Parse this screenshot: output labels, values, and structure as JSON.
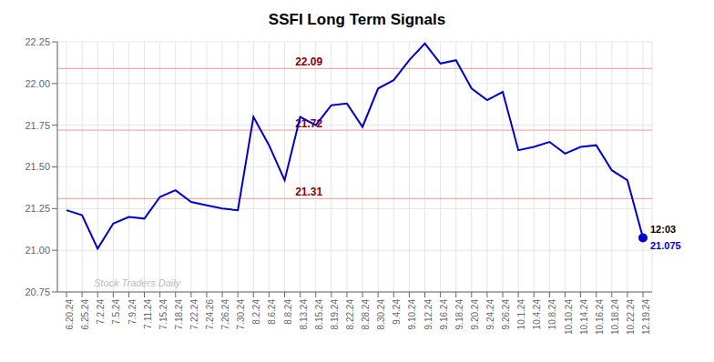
{
  "chart_data": {
    "type": "line",
    "title": "SSFI Long Term Signals",
    "categories": [
      "6.20.24",
      "6.25.24",
      "7.2.24",
      "7.5.24",
      "7.9.24",
      "7.11.24",
      "7.15.24",
      "7.18.24",
      "7.22.24",
      "7.24.26",
      "7.26.24",
      "7.30.24",
      "8.2.24",
      "8.6.24",
      "8.8.24",
      "8.13.24",
      "8.15.24",
      "8.19.24",
      "8.22.24",
      "8.28.24",
      "8.30.24",
      "9.4.24",
      "9.10.24",
      "9.12.24",
      "9.16.24",
      "9.18.24",
      "9.20.24",
      "9.24.24",
      "9.26.24",
      "10.1.24",
      "10.4.24",
      "10.8.24",
      "10.10.24",
      "10.14.24",
      "10.16.24",
      "10.18.24",
      "10.22.24",
      "12.19.24"
    ],
    "values": [
      21.24,
      21.21,
      21.01,
      21.16,
      21.2,
      21.19,
      21.32,
      21.36,
      21.29,
      21.27,
      21.25,
      21.24,
      21.8,
      21.63,
      21.42,
      21.8,
      21.75,
      21.87,
      21.88,
      21.74,
      21.97,
      22.02,
      22.14,
      22.24,
      22.12,
      22.14,
      21.97,
      21.9,
      21.95,
      21.6,
      21.62,
      21.65,
      21.58,
      21.62,
      21.63,
      21.48,
      21.42,
      21.075
    ],
    "color": "#0000cc",
    "ylim": [
      20.75,
      22.25
    ],
    "yticks": [
      20.75,
      {
        "value": 21.0,
        "label": "21.00"
      },
      21.25,
      {
        "value": 21.5,
        "label": "21.50"
      },
      21.75,
      {
        "value": 22.0,
        "label": "22.00"
      },
      22.25
    ],
    "grid": true,
    "annotations": [
      {
        "text": "22.09",
        "y": 22.09,
        "color": "darkred",
        "line_color": "#f5aaaa"
      },
      {
        "text": "21.72",
        "y": 21.72,
        "color": "darkred",
        "line_color": "#f5aaaa"
      },
      {
        "text": "21.31",
        "y": 21.31,
        "color": "darkred",
        "line_color": "#f5aaaa"
      }
    ],
    "end_labels": [
      "12:03",
      "21.075"
    ],
    "watermark": {
      "text": "Stock Traders Daily",
      "color": "#bbbbbb"
    }
  }
}
